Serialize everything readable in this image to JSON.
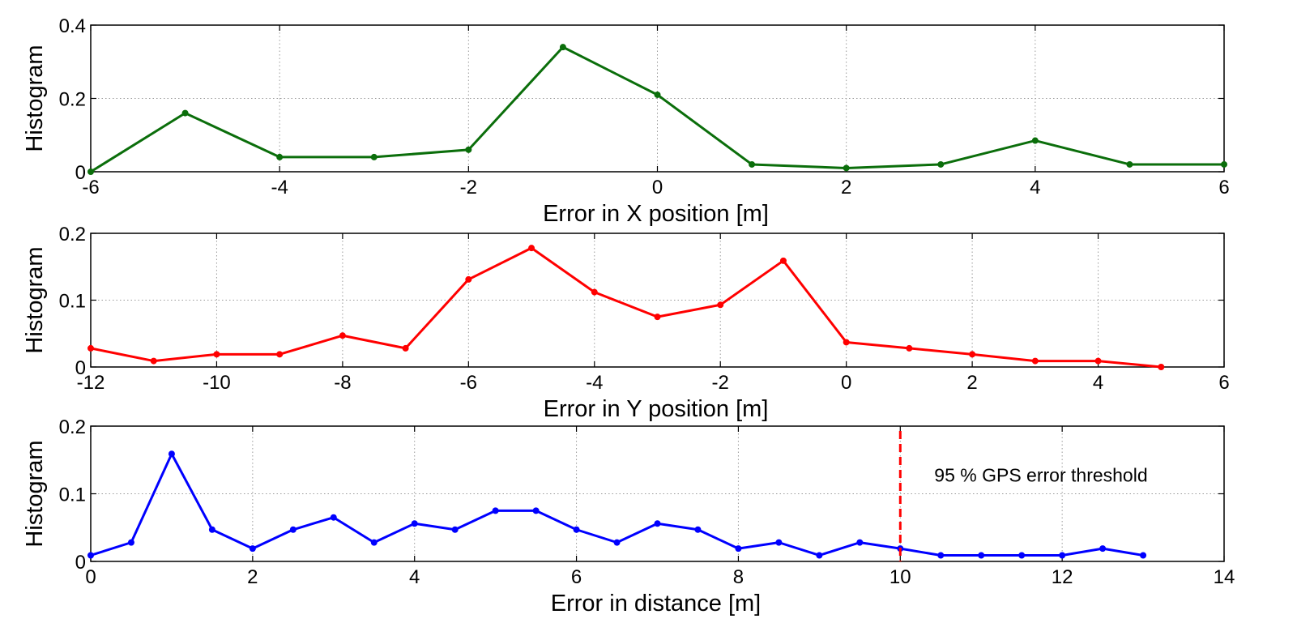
{
  "chart_data": [
    {
      "type": "line",
      "xlabel": "Error in X position [m]",
      "ylabel": "Histogram",
      "xlim": [
        -6,
        6
      ],
      "ylim": [
        0,
        0.4
      ],
      "xticks": [
        "-6",
        "-4",
        "-2",
        "0",
        "2",
        "4",
        "6"
      ],
      "yticks": [
        "0",
        "0.2",
        "0.4"
      ],
      "grid": true,
      "color": "#0b6e0b",
      "x": [
        -6,
        -5,
        -4,
        -3,
        -2,
        -1,
        0,
        1,
        2,
        3,
        4,
        5,
        6
      ],
      "y": [
        0,
        0.16,
        0.04,
        0.04,
        0.06,
        0.34,
        0.21,
        0.02,
        0.01,
        0.02,
        0.085,
        0.02,
        0.02
      ]
    },
    {
      "type": "line",
      "xlabel": "Error in Y position [m]",
      "ylabel": "Histogram",
      "xlim": [
        -12,
        6
      ],
      "ylim": [
        0,
        0.2
      ],
      "xticks": [
        "-12",
        "-10",
        "-8",
        "-6",
        "-4",
        "-2",
        "0",
        "2",
        "4",
        "6"
      ],
      "yticks": [
        "0",
        "0.1",
        "0.2"
      ],
      "grid": true,
      "color": "#ff0000",
      "x": [
        -12,
        -11,
        -10,
        -9,
        -8,
        -7,
        -6,
        -5,
        -4,
        -3,
        -2,
        -1,
        0,
        1,
        2,
        3,
        4,
        5
      ],
      "y": [
        0.028,
        0.009,
        0.019,
        0.019,
        0.047,
        0.028,
        0.131,
        0.178,
        0.112,
        0.075,
        0.093,
        0.159,
        0.037,
        0.028,
        0.019,
        0.009,
        0.009,
        0
      ]
    },
    {
      "type": "line",
      "xlabel": "Error in distance [m]",
      "ylabel": "Histogram",
      "xlim": [
        0,
        14
      ],
      "ylim": [
        0,
        0.2
      ],
      "xticks": [
        "0",
        "2",
        "4",
        "6",
        "8",
        "10",
        "12",
        "14"
      ],
      "yticks": [
        "0",
        "0.1",
        "0.2"
      ],
      "grid": true,
      "color": "#0000ff",
      "x": [
        0,
        0.5,
        1,
        1.5,
        2,
        2.5,
        3,
        3.5,
        4,
        4.5,
        5,
        5.5,
        6,
        6.5,
        7,
        7.5,
        8,
        8.5,
        9,
        9.5,
        10,
        10.5,
        11,
        11.5,
        12,
        12.5,
        13
      ],
      "y": [
        0.009,
        0.028,
        0.159,
        0.047,
        0.019,
        0.047,
        0.065,
        0.028,
        0.056,
        0.047,
        0.075,
        0.075,
        0.047,
        0.028,
        0.056,
        0.047,
        0.019,
        0.028,
        0.009,
        0.028,
        0.019,
        0.009,
        0.009,
        0.009,
        0.009,
        0.019,
        0.009
      ],
      "threshold": {
        "x": 10,
        "color": "#ff0000",
        "label": "95 % GPS error threshold"
      }
    }
  ]
}
